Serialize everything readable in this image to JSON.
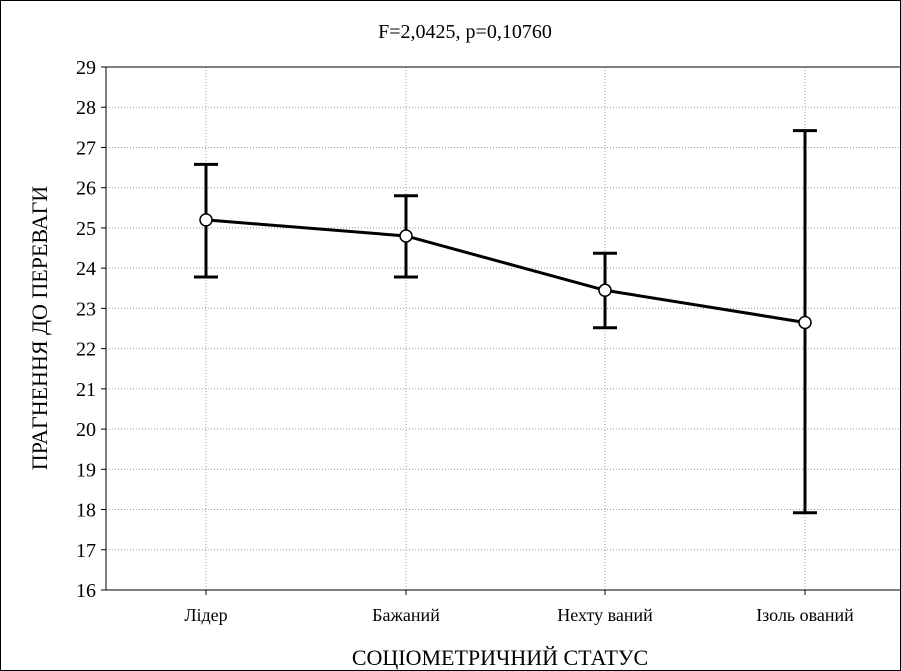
{
  "chart_data": {
    "type": "line",
    "title": "F=2,0425, p=0,10760",
    "xlabel": "СОЦІОМЕТРИЧНИЙ СТАТУС",
    "ylabel": "ПРАГНЕННЯ ДО ПЕРЕВАГИ",
    "categories": [
      "Лідер",
      "Бажаний",
      "Нехту ваний",
      "Ізоль ований"
    ],
    "series": [
      {
        "values": [
          25.2,
          24.8,
          23.45,
          22.65
        ],
        "error_low": [
          23.78,
          23.78,
          22.52,
          17.92
        ],
        "error_high": [
          26.58,
          25.8,
          24.37,
          27.42
        ]
      }
    ],
    "ylim": [
      16,
      29
    ],
    "yticks": [
      16,
      17,
      18,
      19,
      20,
      21,
      22,
      23,
      24,
      25,
      26,
      27,
      28,
      29
    ],
    "grid": true,
    "colors": {
      "line": "#000000",
      "grid": "#999999",
      "marker_fill": "#ffffff"
    }
  }
}
